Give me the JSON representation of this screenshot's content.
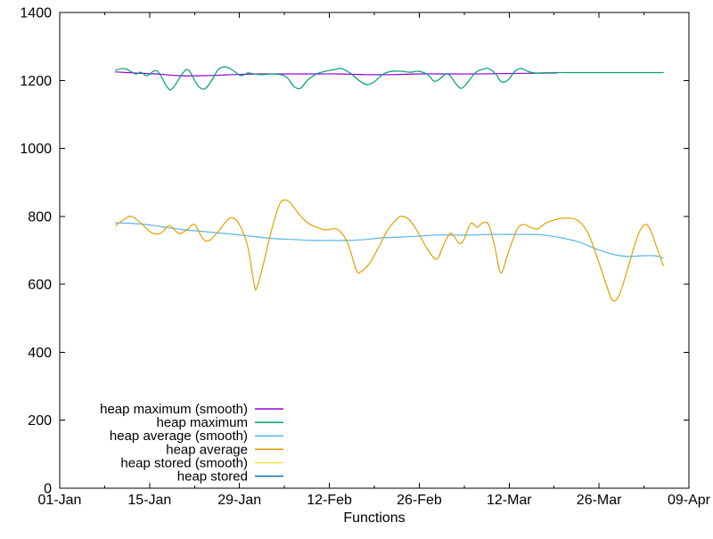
{
  "window": {
    "background": "#ffffff",
    "text_color": "#000000",
    "axis_color": "#000000"
  },
  "chart_data": {
    "type": "line",
    "title": "",
    "xlabel": "Functions",
    "ylabel": "",
    "grid": false,
    "x_axis": {
      "tick_labels": [
        "01-Jan",
        "15-Jan",
        "29-Jan",
        "12-Feb",
        "26-Feb",
        "12-Mar",
        "26-Mar",
        "09-Apr"
      ],
      "tick_positions_days": [
        0,
        14,
        28,
        42,
        56,
        70,
        84,
        98
      ],
      "minor_tick_days": [
        7,
        21,
        35,
        49,
        63,
        77,
        91
      ],
      "domain_days": [
        0,
        98
      ]
    },
    "y_axis": {
      "tick_labels": [
        "0",
        "200",
        "400",
        "600",
        "800",
        "1000",
        "1200",
        "1400"
      ],
      "tick_values": [
        0,
        200,
        400,
        600,
        800,
        1000,
        1200,
        1400
      ],
      "ylim": [
        0,
        1400
      ]
    },
    "legend": {
      "position": "inside-bottom-left",
      "entries": [
        "heap maximum (smooth)",
        "heap maximum",
        "heap average (smooth)",
        "heap average",
        "heap stored (smooth)",
        "heap stored"
      ]
    },
    "series": [
      {
        "name": "heap maximum (smooth)",
        "color": "#9400d3",
        "visible": true,
        "points": [
          [
            8.7,
            1225
          ],
          [
            11.5,
            1222
          ],
          [
            15.0,
            1219
          ],
          [
            18.5,
            1214
          ],
          [
            22.6,
            1214
          ],
          [
            26.8,
            1217
          ],
          [
            31.0,
            1219
          ],
          [
            35.1,
            1219
          ],
          [
            39.3,
            1219
          ],
          [
            43.4,
            1219
          ],
          [
            47.6,
            1217
          ],
          [
            51.8,
            1217
          ],
          [
            55.9,
            1219
          ],
          [
            60.1,
            1219
          ],
          [
            64.3,
            1219
          ],
          [
            68.4,
            1220
          ],
          [
            72.6,
            1221
          ],
          [
            77.5,
            1222
          ]
        ]
      },
      {
        "name": "heap maximum",
        "color": "#009e73",
        "visible": true,
        "points": [
          [
            8.7,
            1230
          ],
          [
            10.1,
            1235
          ],
          [
            11.8,
            1219
          ],
          [
            12.6,
            1224
          ],
          [
            13.6,
            1214
          ],
          [
            14.6,
            1227
          ],
          [
            15.4,
            1224
          ],
          [
            16.7,
            1182
          ],
          [
            17.5,
            1175
          ],
          [
            19.2,
            1222
          ],
          [
            20.1,
            1230
          ],
          [
            21.5,
            1185
          ],
          [
            22.6,
            1175
          ],
          [
            23.7,
            1201
          ],
          [
            24.7,
            1232
          ],
          [
            25.7,
            1240
          ],
          [
            26.8,
            1232
          ],
          [
            28.2,
            1214
          ],
          [
            29.3,
            1222
          ],
          [
            30.3,
            1219
          ],
          [
            31.6,
            1217
          ],
          [
            33.0,
            1219
          ],
          [
            34.4,
            1217
          ],
          [
            35.4,
            1209
          ],
          [
            36.5,
            1182
          ],
          [
            37.5,
            1177
          ],
          [
            38.6,
            1201
          ],
          [
            40.0,
            1219
          ],
          [
            41.4,
            1227
          ],
          [
            42.8,
            1232
          ],
          [
            43.9,
            1235
          ],
          [
            45.2,
            1222
          ],
          [
            46.9,
            1196
          ],
          [
            47.9,
            1188
          ],
          [
            49.0,
            1196
          ],
          [
            50.4,
            1219
          ],
          [
            51.8,
            1227
          ],
          [
            53.2,
            1227
          ],
          [
            54.6,
            1224
          ],
          [
            55.9,
            1227
          ],
          [
            57.3,
            1217
          ],
          [
            58.3,
            1198
          ],
          [
            59.1,
            1203
          ],
          [
            60.1,
            1219
          ],
          [
            60.8,
            1214
          ],
          [
            61.8,
            1188
          ],
          [
            62.6,
            1177
          ],
          [
            63.6,
            1196
          ],
          [
            64.7,
            1222
          ],
          [
            65.7,
            1232
          ],
          [
            66.8,
            1235
          ],
          [
            67.9,
            1219
          ],
          [
            68.8,
            1196
          ],
          [
            69.8,
            1201
          ],
          [
            70.9,
            1227
          ],
          [
            71.8,
            1235
          ],
          [
            72.9,
            1227
          ],
          [
            74.0,
            1222
          ],
          [
            76.8,
            1223
          ],
          [
            80.9,
            1223
          ],
          [
            87.9,
            1223
          ],
          [
            94.0,
            1223
          ]
        ]
      },
      {
        "name": "heap average (smooth)",
        "color": "#56b4e9",
        "visible": true,
        "points": [
          [
            8.7,
            781
          ],
          [
            11.5,
            779
          ],
          [
            14.3,
            774
          ],
          [
            17.1,
            766
          ],
          [
            19.8,
            760
          ],
          [
            22.6,
            755
          ],
          [
            25.4,
            750
          ],
          [
            28.2,
            745
          ],
          [
            31.0,
            739
          ],
          [
            33.7,
            734
          ],
          [
            36.5,
            732
          ],
          [
            39.3,
            729
          ],
          [
            42.1,
            729
          ],
          [
            44.8,
            729
          ],
          [
            47.6,
            732
          ],
          [
            50.4,
            737
          ],
          [
            53.2,
            739
          ],
          [
            55.9,
            742
          ],
          [
            58.7,
            745
          ],
          [
            61.5,
            745
          ],
          [
            64.3,
            745
          ],
          [
            67.0,
            747
          ],
          [
            69.8,
            747
          ],
          [
            72.6,
            747
          ],
          [
            75.4,
            745
          ],
          [
            78.1,
            737
          ],
          [
            80.9,
            724
          ],
          [
            83.7,
            703
          ],
          [
            86.5,
            687
          ],
          [
            88.6,
            682
          ],
          [
            90.6,
            684
          ],
          [
            92.7,
            684
          ],
          [
            94.0,
            677
          ]
        ]
      },
      {
        "name": "heap average",
        "color": "#e69f00",
        "visible": true,
        "points": [
          [
            8.7,
            773
          ],
          [
            10.1,
            792
          ],
          [
            11.2,
            800
          ],
          [
            12.6,
            781
          ],
          [
            14.3,
            752
          ],
          [
            15.7,
            750
          ],
          [
            17.1,
            773
          ],
          [
            18.5,
            750
          ],
          [
            19.8,
            760
          ],
          [
            21.0,
            776
          ],
          [
            22.3,
            734
          ],
          [
            23.3,
            729
          ],
          [
            24.7,
            755
          ],
          [
            26.1,
            789
          ],
          [
            27.1,
            795
          ],
          [
            28.2,
            768
          ],
          [
            29.3,
            710
          ],
          [
            30.3,
            598
          ],
          [
            30.7,
            590
          ],
          [
            31.6,
            650
          ],
          [
            33.0,
            760
          ],
          [
            34.1,
            829
          ],
          [
            34.8,
            847
          ],
          [
            35.8,
            842
          ],
          [
            37.2,
            808
          ],
          [
            38.6,
            781
          ],
          [
            40.0,
            768
          ],
          [
            41.4,
            760
          ],
          [
            42.3,
            763
          ],
          [
            43.4,
            760
          ],
          [
            44.8,
            724
          ],
          [
            46.2,
            642
          ],
          [
            46.9,
            637
          ],
          [
            48.3,
            663
          ],
          [
            49.7,
            710
          ],
          [
            51.1,
            760
          ],
          [
            52.5,
            792
          ],
          [
            53.4,
            800
          ],
          [
            54.6,
            787
          ],
          [
            55.9,
            750
          ],
          [
            57.3,
            703
          ],
          [
            58.7,
            674
          ],
          [
            59.8,
            716
          ],
          [
            60.8,
            750
          ],
          [
            61.5,
            739
          ],
          [
            62.2,
            721
          ],
          [
            62.9,
            729
          ],
          [
            64.0,
            779
          ],
          [
            65.0,
            768
          ],
          [
            65.9,
            781
          ],
          [
            66.8,
            776
          ],
          [
            67.7,
            716
          ],
          [
            68.7,
            634
          ],
          [
            69.8,
            690
          ],
          [
            71.2,
            760
          ],
          [
            72.2,
            776
          ],
          [
            73.3,
            768
          ],
          [
            74.4,
            763
          ],
          [
            75.8,
            781
          ],
          [
            77.5,
            792
          ],
          [
            78.8,
            795
          ],
          [
            80.6,
            789
          ],
          [
            82.3,
            750
          ],
          [
            84.0,
            663
          ],
          [
            85.4,
            584
          ],
          [
            86.2,
            551
          ],
          [
            87.2,
            571
          ],
          [
            88.6,
            655
          ],
          [
            90.0,
            742
          ],
          [
            91.1,
            776
          ],
          [
            92.0,
            760
          ],
          [
            93.1,
            703
          ],
          [
            94.0,
            655
          ]
        ]
      },
      {
        "name": "heap stored (smooth)",
        "color": "#f0e442",
        "visible": false,
        "points": []
      },
      {
        "name": "heap stored",
        "color": "#0072b2",
        "visible": false,
        "points": []
      }
    ]
  }
}
